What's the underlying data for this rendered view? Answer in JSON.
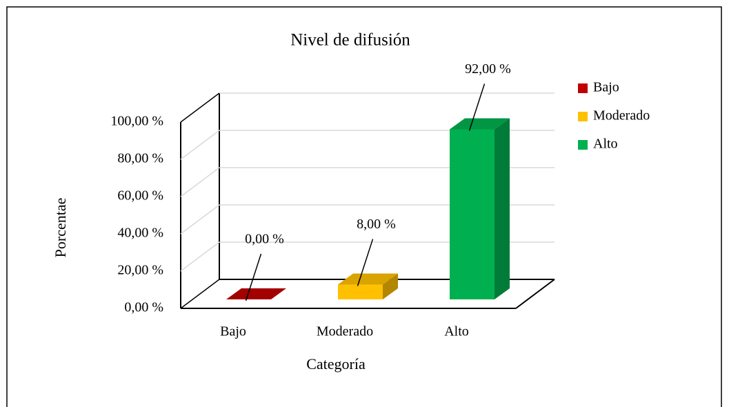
{
  "chart_data": {
    "type": "bar3d",
    "title": "Nivel de difusión",
    "x_label": "Categoría",
    "y_label": "Porcentae",
    "categories": [
      "Bajo",
      "Moderado",
      "Alto"
    ],
    "values": [
      0,
      8,
      92
    ],
    "value_labels": [
      "0,00 %",
      "8,00 %",
      "92,00 %"
    ],
    "colors": [
      "#c00000",
      "#ffc000",
      "#00b050"
    ],
    "ylim": [
      0,
      100
    ],
    "yticks": [
      {
        "value": 0,
        "label": "0,00 %"
      },
      {
        "value": 20,
        "label": "20,00 %"
      },
      {
        "value": 40,
        "label": "40,00 %"
      },
      {
        "value": 60,
        "label": "60,00 %"
      },
      {
        "value": 80,
        "label": "80,00 %"
      },
      {
        "value": 100,
        "label": "100,00 %"
      }
    ],
    "grid": true,
    "legend": "right"
  }
}
